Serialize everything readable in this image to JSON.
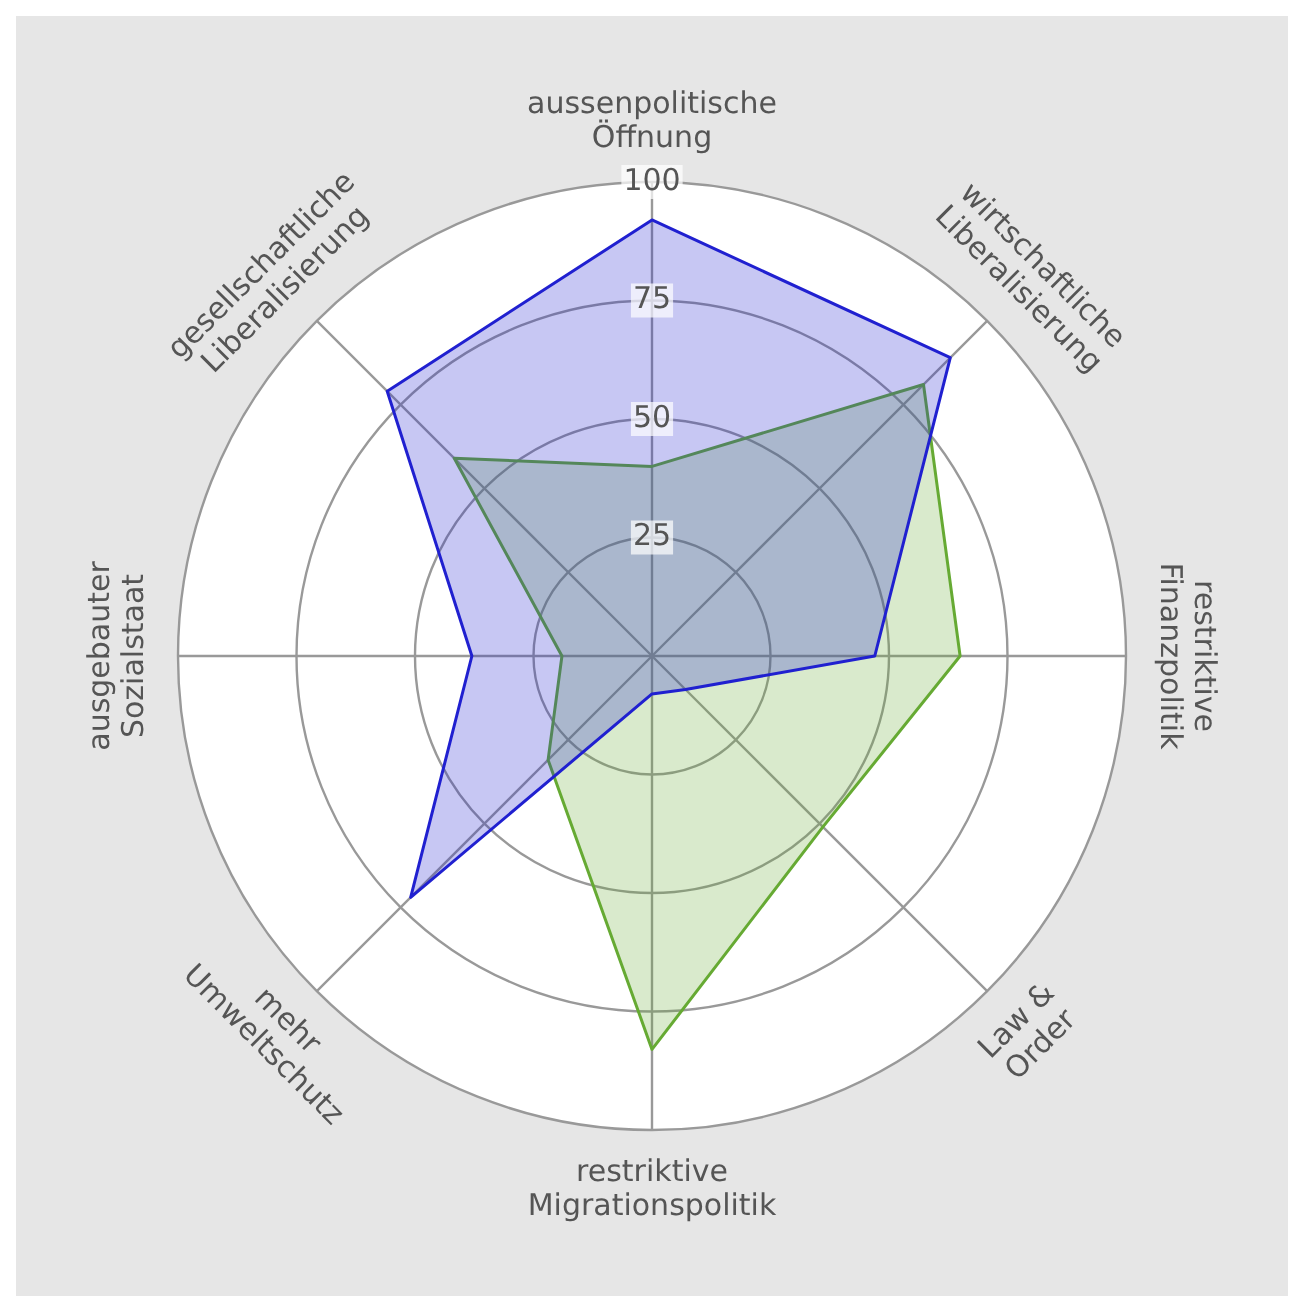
{
  "chart_data": {
    "type": "radar",
    "categories": [
      "aussenpolitische Öffnung",
      "wirtschaftliche Liberalisierung",
      "restriktive Finanzpolitik",
      "Law & Order",
      "restriktive Migrationspolitik",
      "mehr Umweltschutz",
      "ausgebauter Sozialstaat",
      "gesellschaftliche Liberalisierung"
    ],
    "series": [
      {
        "color": "#2020d0",
        "values": [
          92,
          89,
          47,
          10,
          8,
          72,
          38,
          79
        ]
      },
      {
        "color": "#66aa33",
        "values": [
          40,
          81,
          65,
          51,
          83,
          31,
          19,
          59
        ]
      }
    ],
    "ylim": [
      0,
      100
    ],
    "yticks": [
      25,
      50,
      75,
      100
    ],
    "grid": true,
    "marker": "none"
  }
}
